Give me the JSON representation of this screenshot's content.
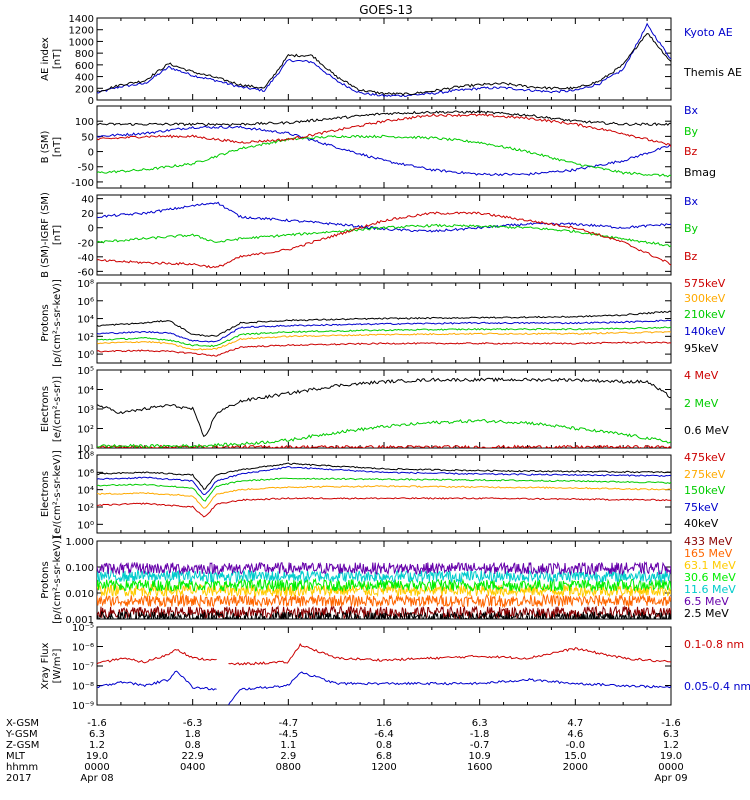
{
  "title": "GOES-13",
  "chart_data": [
    {
      "type": "line",
      "ylabel": "AE index\n[nT]",
      "ylim": [
        0,
        1400
      ],
      "yticks": [
        0,
        200,
        400,
        600,
        800,
        1000,
        1200,
        1400
      ],
      "log": false,
      "series": [
        {
          "name": "Kyoto AE",
          "color": "#0000cc",
          "x": [
            0,
            1,
            2,
            3,
            4,
            5,
            6,
            7,
            8,
            9,
            10,
            11,
            12,
            13,
            14,
            15,
            16,
            17,
            18,
            19,
            20,
            21,
            22,
            23,
            24
          ],
          "values": [
            120,
            230,
            280,
            560,
            420,
            330,
            220,
            160,
            680,
            650,
            330,
            120,
            70,
            80,
            110,
            160,
            200,
            210,
            170,
            140,
            160,
            280,
            520,
            1280,
            700
          ]
        },
        {
          "name": "Themis AE",
          "color": "#000000",
          "x": [
            0,
            1,
            2,
            3,
            4,
            5,
            6,
            7,
            8,
            9,
            10,
            11,
            12,
            13,
            14,
            15,
            16,
            17,
            18,
            19,
            20,
            21,
            22,
            23,
            24
          ],
          "values": [
            140,
            260,
            330,
            620,
            480,
            380,
            260,
            200,
            760,
            760,
            400,
            170,
            110,
            100,
            150,
            220,
            260,
            280,
            230,
            200,
            200,
            320,
            600,
            1150,
            650
          ]
        }
      ]
    },
    {
      "type": "line",
      "ylabel": "B (SM)\n[nT]",
      "ylim": [
        -120,
        150
      ],
      "yticks": [
        -100,
        -50,
        0,
        50,
        100
      ],
      "log": false,
      "series": [
        {
          "name": "Bx",
          "color": "#0000cc",
          "x": [
            0,
            2,
            4,
            6,
            8,
            10,
            12,
            14,
            16,
            18,
            20,
            22,
            24
          ],
          "values": [
            50,
            60,
            80,
            80,
            60,
            15,
            -30,
            -60,
            -75,
            -75,
            -60,
            -30,
            20
          ]
        },
        {
          "name": "By",
          "color": "#00cc00",
          "x": [
            0,
            2,
            4,
            6,
            8,
            10,
            12,
            14,
            16,
            18,
            20,
            22,
            24
          ],
          "values": [
            -70,
            -60,
            -40,
            10,
            40,
            50,
            50,
            45,
            30,
            0,
            -40,
            -70,
            -80
          ]
        },
        {
          "name": "Bz",
          "color": "#cc0000",
          "x": [
            0,
            2,
            4,
            6,
            8,
            10,
            12,
            14,
            16,
            18,
            20,
            22,
            24
          ],
          "values": [
            40,
            50,
            50,
            30,
            40,
            70,
            100,
            120,
            120,
            110,
            90,
            60,
            20
          ]
        },
        {
          "name": "Bmag",
          "color": "#000000",
          "x": [
            0,
            2,
            4,
            6,
            8,
            10,
            12,
            14,
            16,
            18,
            20,
            22,
            24
          ],
          "values": [
            90,
            90,
            90,
            90,
            95,
            110,
            125,
            130,
            130,
            120,
            100,
            90,
            90
          ]
        }
      ]
    },
    {
      "type": "line",
      "ylabel": "B (SM)-IGRF (SM)\n[nT]",
      "ylim": [
        -65,
        45
      ],
      "yticks": [
        -60,
        -40,
        -20,
        0,
        20,
        40
      ],
      "log": false,
      "series": [
        {
          "name": "Bx",
          "color": "#0000cc",
          "x": [
            0,
            2,
            4,
            5,
            6,
            8,
            10,
            12,
            14,
            16,
            18,
            20,
            22,
            24
          ],
          "values": [
            15,
            20,
            30,
            35,
            15,
            10,
            5,
            -2,
            -5,
            0,
            5,
            5,
            0,
            5
          ]
        },
        {
          "name": "By",
          "color": "#00cc00",
          "x": [
            0,
            2,
            4,
            5,
            6,
            8,
            10,
            12,
            14,
            16,
            18,
            20,
            22,
            24
          ],
          "values": [
            -20,
            -15,
            -10,
            -20,
            -15,
            -10,
            -5,
            0,
            3,
            2,
            0,
            -5,
            -15,
            -25
          ]
        },
        {
          "name": "Bz",
          "color": "#cc0000",
          "x": [
            0,
            2,
            4,
            5,
            6,
            8,
            10,
            12,
            14,
            16,
            18,
            20,
            22,
            24
          ],
          "values": [
            -45,
            -48,
            -50,
            -55,
            -40,
            -30,
            -10,
            10,
            20,
            20,
            10,
            0,
            -20,
            -50
          ]
        }
      ]
    },
    {
      "type": "line",
      "ylabel": "Protons\n[p/(cm²-s-sr-keV)]",
      "log": true,
      "ylim_exp": [
        -1,
        8
      ],
      "ytick_labels": [
        "10⁰",
        "10²",
        "10⁴",
        "10⁶",
        "10⁸"
      ],
      "series": [
        {
          "name": "575keV",
          "color": "#cc0000",
          "x": [
            0,
            2,
            3,
            4,
            5,
            6,
            8,
            12,
            16,
            20,
            22,
            24
          ],
          "logvalues": [
            0.3,
            0.4,
            0.3,
            0.1,
            -0.2,
            0.8,
            1.0,
            1.2,
            1.2,
            1.2,
            1.3,
            1.3
          ]
        },
        {
          "name": "300keV",
          "color": "#ffaa00",
          "x": [
            0,
            2,
            3,
            4,
            5,
            6,
            8,
            12,
            16,
            20,
            22,
            24
          ],
          "logvalues": [
            1.2,
            1.4,
            1.2,
            0.5,
            0.6,
            1.7,
            2.0,
            2.2,
            2.3,
            2.3,
            2.4,
            2.5
          ]
        },
        {
          "name": "210keV",
          "color": "#00cc00",
          "x": [
            0,
            2,
            3,
            4,
            5,
            6,
            8,
            12,
            16,
            20,
            22,
            24
          ],
          "logvalues": [
            1.6,
            1.8,
            1.6,
            1.0,
            0.9,
            2.2,
            2.5,
            2.7,
            2.8,
            2.8,
            2.9,
            3.0
          ]
        },
        {
          "name": "140keV",
          "color": "#0000cc",
          "x": [
            0,
            2,
            3,
            4,
            5,
            6,
            8,
            12,
            16,
            20,
            22,
            24
          ],
          "logvalues": [
            2.3,
            2.5,
            2.4,
            1.5,
            1.4,
            3.0,
            3.2,
            3.4,
            3.5,
            3.5,
            3.6,
            3.8
          ]
        },
        {
          "name": "95keV",
          "color": "#000000",
          "x": [
            0,
            2,
            3,
            4,
            5,
            6,
            8,
            12,
            16,
            20,
            22,
            24
          ],
          "logvalues": [
            3.2,
            3.5,
            3.8,
            2.2,
            2.0,
            3.5,
            3.8,
            4.0,
            4.1,
            4.2,
            4.4,
            4.8
          ]
        }
      ]
    },
    {
      "type": "line",
      "ylabel": "Electrons\n[e/(cm²-s-sr)]",
      "log": true,
      "ylim_exp": [
        1,
        5
      ],
      "ytick_labels": [
        "10¹",
        "10²",
        "10³",
        "10⁴",
        "10⁵"
      ],
      "series": [
        {
          "name": "4 MeV",
          "color": "#cc0000",
          "x": [
            0,
            4,
            8,
            12,
            16,
            20,
            24
          ],
          "logvalues": [
            1.05,
            1.05,
            1.05,
            1.05,
            1.05,
            1.05,
            1.05
          ]
        },
        {
          "name": "2 MeV",
          "color": "#00cc00",
          "x": [
            0,
            2,
            4,
            6,
            8,
            10,
            12,
            14,
            16,
            18,
            20,
            22,
            24
          ],
          "logvalues": [
            1.1,
            1.1,
            1.1,
            1.2,
            1.4,
            1.8,
            2.1,
            2.3,
            2.4,
            2.3,
            2.0,
            1.7,
            1.3
          ]
        },
        {
          "name": "0.6 MeV",
          "color": "#000000",
          "x": [
            0,
            1,
            2,
            3,
            4,
            4.5,
            5,
            6,
            7,
            8,
            10,
            12,
            14,
            16,
            18,
            20,
            22,
            23,
            24
          ],
          "logvalues": [
            3.2,
            2.8,
            3.0,
            3.2,
            3.0,
            1.5,
            2.8,
            3.4,
            3.6,
            3.8,
            4.2,
            4.4,
            4.5,
            4.5,
            4.5,
            4.5,
            4.4,
            4.4,
            3.6
          ]
        }
      ]
    },
    {
      "type": "line",
      "ylabel": "Electrons\n[e/(cm²-s-sr-keV)]",
      "log": true,
      "ylim_exp": [
        -1,
        8
      ],
      "ytick_labels": [
        "10⁰",
        "10²",
        "10⁴",
        "10⁶",
        "10⁸"
      ],
      "series": [
        {
          "name": "475keV",
          "color": "#cc0000",
          "x": [
            0,
            2,
            4,
            4.5,
            5,
            6,
            8,
            12,
            16,
            20,
            24
          ],
          "logvalues": [
            2.2,
            2.4,
            2.0,
            0.8,
            2.3,
            2.8,
            3.0,
            3.0,
            3.0,
            2.9,
            2.8
          ]
        },
        {
          "name": "275keV",
          "color": "#ffaa00",
          "x": [
            0,
            2,
            4,
            4.5,
            5,
            6,
            8,
            12,
            16,
            20,
            24
          ],
          "logvalues": [
            3.5,
            3.6,
            3.3,
            1.8,
            3.5,
            4.0,
            4.3,
            4.4,
            4.3,
            4.2,
            4.0
          ]
        },
        {
          "name": "150keV",
          "color": "#00cc00",
          "x": [
            0,
            2,
            4,
            4.5,
            5,
            6,
            8,
            12,
            16,
            20,
            24
          ],
          "logvalues": [
            4.5,
            4.6,
            4.2,
            2.6,
            4.4,
            5.0,
            5.3,
            5.2,
            5.1,
            5.0,
            4.8
          ]
        },
        {
          "name": "75keV",
          "color": "#0000cc",
          "x": [
            0,
            2,
            4,
            4.5,
            5,
            6,
            8,
            12,
            16,
            20,
            24
          ],
          "logvalues": [
            5.2,
            5.4,
            5.0,
            3.3,
            5.0,
            5.8,
            6.6,
            6.0,
            5.8,
            5.7,
            5.6
          ]
        },
        {
          "name": "40keV",
          "color": "#000000",
          "x": [
            0,
            2,
            4,
            4.5,
            5,
            6,
            8,
            12,
            16,
            20,
            24
          ],
          "logvalues": [
            5.8,
            6.0,
            5.7,
            4.0,
            5.7,
            6.3,
            7.0,
            6.4,
            6.2,
            6.1,
            6.0
          ]
        }
      ]
    },
    {
      "type": "line",
      "ylabel": "Protons\n[p/(cm²-s-sr-keV)]",
      "log": true,
      "ylim_exp": [
        -3,
        0
      ],
      "ytick_labels": [
        "0.001",
        "0.010",
        "0.100",
        "1.000"
      ],
      "series": [
        {
          "name": "433 MeV",
          "color": "#880000",
          "level": -2.75
        },
        {
          "name": "165 MeV",
          "color": "#ff6600",
          "level": -2.3
        },
        {
          "name": "63.1 MeV",
          "color": "#ffcc00",
          "level": -1.9
        },
        {
          "name": "30.6 MeV",
          "color": "#00ee00",
          "level": -1.7
        },
        {
          "name": "11.6 MeV",
          "color": "#00cccc",
          "level": -1.35
        },
        {
          "name": "6.5 MeV",
          "color": "#6600aa",
          "level": -1.05
        },
        {
          "name": "2.5 MeV",
          "color": "#000000",
          "level": -2.95
        }
      ]
    },
    {
      "type": "line",
      "ylabel": "Xray Flux\n[W/m²]",
      "log": true,
      "ylim_exp": [
        -9,
        -5
      ],
      "ytick_labels": [
        "10⁻⁹",
        "10⁻⁸",
        "10⁻⁷",
        "10⁻⁶",
        "10⁻⁵"
      ],
      "series": [
        {
          "name": "0.1-0.8 nm",
          "color": "#cc0000",
          "segments": [
            {
              "x": [
                0,
                1,
                2,
                3,
                3.3,
                4,
                5
              ],
              "logvalues": [
                -6.9,
                -6.6,
                -6.8,
                -6.4,
                -6.1,
                -6.6,
                -6.7
              ]
            },
            {
              "x": [
                5.5,
                6,
                8,
                8.5,
                10,
                12,
                14,
                16,
                18,
                20,
                22,
                24
              ],
              "logvalues": [
                -6.9,
                -6.9,
                -6.8,
                -5.9,
                -6.6,
                -6.7,
                -6.6,
                -6.5,
                -6.6,
                -6.1,
                -6.6,
                -6.8
              ]
            }
          ]
        },
        {
          "name": "0.05-0.4 nm",
          "color": "#0000cc",
          "segments": [
            {
              "x": [
                0,
                1,
                2,
                3,
                3.3,
                4,
                5
              ],
              "logvalues": [
                -8.1,
                -7.8,
                -8.0,
                -7.7,
                -7.2,
                -8.1,
                -8.2
              ]
            },
            {
              "x": [
                5.5,
                6,
                8,
                8.5,
                10,
                12,
                14,
                16,
                18,
                20,
                22,
                24
              ],
              "logvalues": [
                -9.0,
                -8.2,
                -8.0,
                -7.3,
                -7.9,
                -7.9,
                -7.9,
                -7.9,
                -7.7,
                -7.9,
                -8.0,
                -8.1
              ]
            }
          ]
        }
      ]
    }
  ],
  "xaxis": {
    "row_labels": [
      "X-GSM",
      "Y-GSM",
      "Z-GSM",
      "MLT",
      "hhmm",
      "2017"
    ],
    "columns": [
      [
        "-1.6",
        "6.3",
        "1.2",
        "19.0",
        "0000",
        "Apr 08"
      ],
      [
        "-6.3",
        "1.8",
        "0.8",
        "22.9",
        "0400",
        ""
      ],
      [
        "-4.7",
        "-4.5",
        "1.1",
        "2.9",
        "0800",
        ""
      ],
      [
        "1.6",
        "-6.4",
        "0.8",
        "6.8",
        "1200",
        ""
      ],
      [
        "6.3",
        "-1.8",
        "-0.7",
        "10.9",
        "1600",
        ""
      ],
      [
        "4.7",
        "4.6",
        "-0.0",
        "15.0",
        "2000",
        ""
      ],
      [
        "-1.6",
        "6.3",
        "1.2",
        "19.0",
        "0000",
        "Apr 09"
      ]
    ]
  }
}
